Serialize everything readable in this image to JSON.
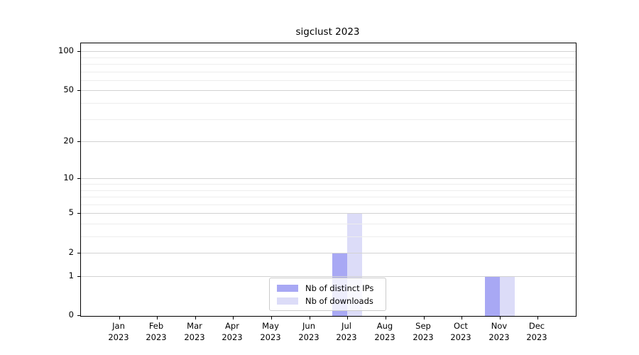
{
  "chart_data": {
    "type": "bar",
    "title": "sigclust 2023",
    "categories": [
      "Jan",
      "Feb",
      "Mar",
      "Apr",
      "May",
      "Jun",
      "Jul",
      "Aug",
      "Sep",
      "Oct",
      "Nov",
      "Dec"
    ],
    "category_year": "2023",
    "series": [
      {
        "key": "distinct-ips",
        "name": "Nb of distinct IPs",
        "color": "#a8a8f4",
        "values": [
          0,
          0,
          0,
          0,
          0,
          0,
          2,
          0,
          0,
          0,
          1,
          0
        ]
      },
      {
        "key": "downloads",
        "name": "Nb of downloads",
        "color": "#dcdcf8",
        "values": [
          0,
          0,
          0,
          0,
          0,
          0,
          5,
          0,
          0,
          0,
          1,
          0
        ]
      }
    ],
    "y_axis": {
      "scale": "log1p",
      "major_ticks": [
        0,
        1,
        2,
        5,
        10,
        20,
        50,
        100
      ],
      "minor_ticks": [
        3,
        4,
        6,
        7,
        8,
        9,
        30,
        40,
        60,
        70,
        80,
        90
      ],
      "ylim": [
        0,
        115
      ]
    },
    "x_axis": {
      "tick_count": 12
    },
    "grid": true,
    "legend_position": "lower center"
  },
  "colors": {
    "axis": "#000000",
    "major_grid": "#d2d2d2",
    "minor_grid": "#ededed",
    "legend_border": "#cbcbcb",
    "background": "#ffffff"
  }
}
